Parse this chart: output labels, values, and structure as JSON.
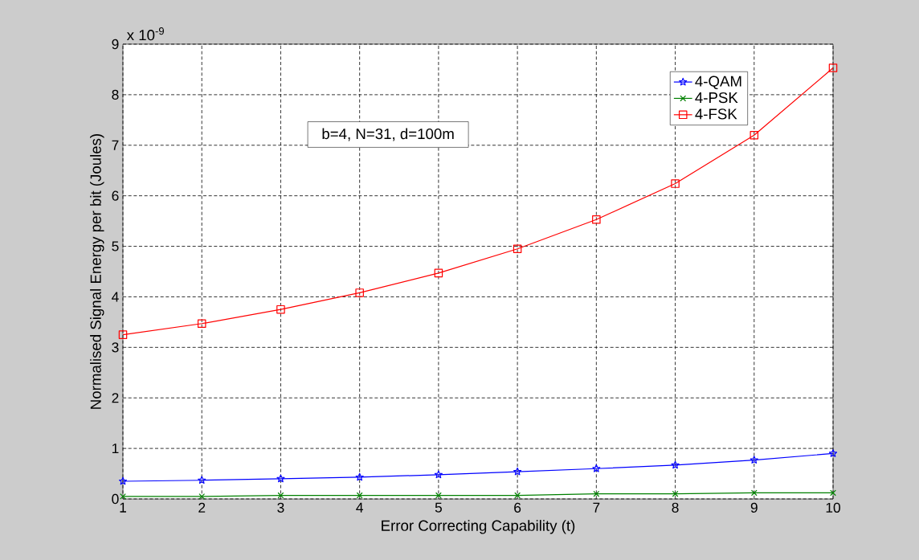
{
  "chart_data": {
    "type": "line",
    "xlabel": "Error Correcting Capability (t)",
    "ylabel": "Normalised Signal Energy per bit (Joules)",
    "annotations": [
      "b=4, N=31, d=100m",
      "x 10$^{-9}$"
    ],
    "x": [
      1,
      2,
      3,
      4,
      5,
      6,
      7,
      8,
      9,
      10
    ],
    "series": [
      {
        "name": "4-QAM",
        "color": "#0000ff",
        "marker": "star",
        "values": [
          0.35,
          0.37,
          0.4,
          0.43,
          0.48,
          0.54,
          0.6,
          0.67,
          0.77,
          0.9
        ]
      },
      {
        "name": "4-PSK",
        "color": "#008000",
        "marker": "cross",
        "values": [
          0.05,
          0.05,
          0.07,
          0.07,
          0.07,
          0.07,
          0.1,
          0.1,
          0.12,
          0.12
        ]
      },
      {
        "name": "4-FSK",
        "color": "#ff0000",
        "marker": "square",
        "values": [
          3.25,
          3.47,
          3.75,
          4.08,
          4.47,
          4.95,
          5.53,
          6.24,
          7.2,
          8.53
        ]
      }
    ],
    "xlim": [
      1,
      10
    ],
    "ylim": [
      0,
      9
    ],
    "xticks": [
      1,
      2,
      3,
      4,
      5,
      6,
      7,
      8,
      9,
      10
    ],
    "yticks": [
      0,
      1,
      2,
      3,
      4,
      5,
      6,
      7,
      8,
      9
    ],
    "grid": true,
    "legend": "top right",
    "line_style": "solid"
  }
}
